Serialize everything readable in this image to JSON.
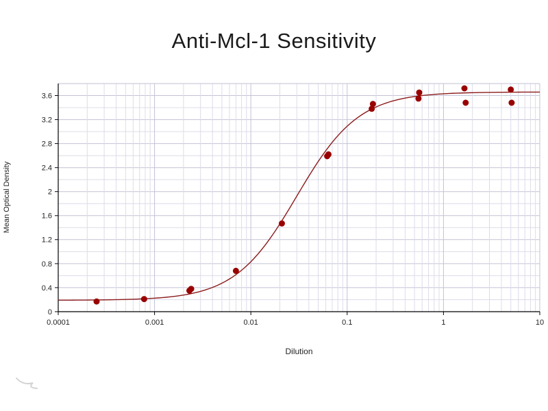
{
  "chart_data": {
    "type": "scatter",
    "title": "Anti-Mcl-1 Sensitivity",
    "xlabel": "Dilution",
    "ylabel": "Mean Optical Density",
    "x_scale": "log",
    "y_scale": "linear",
    "xlim": [
      0.0001,
      10
    ],
    "ylim": [
      0,
      3.8
    ],
    "x_ticks": [
      0.0001,
      0.001,
      0.01,
      0.1,
      1,
      10
    ],
    "x_tick_labels": [
      "0.0001",
      "0.001",
      "0.01",
      "0.1",
      "1",
      "10"
    ],
    "y_ticks": [
      0,
      0.4,
      0.8,
      1.2,
      1.6,
      2,
      2.4,
      2.8,
      3.2,
      3.6
    ],
    "y_tick_labels": [
      "0",
      "0.4",
      "0.8",
      "1.2",
      "1.6",
      "2",
      "2.4",
      "2.8",
      "3.2",
      "3.6"
    ],
    "grid": "on",
    "legend": "none",
    "points": [
      [
        0.00025,
        0.17
      ],
      [
        0.00078,
        0.21
      ],
      [
        0.0023,
        0.35
      ],
      [
        0.0024,
        0.38
      ],
      [
        0.007,
        0.68
      ],
      [
        0.021,
        1.47
      ],
      [
        0.062,
        2.59
      ],
      [
        0.064,
        2.62
      ],
      [
        0.18,
        3.38
      ],
      [
        0.185,
        3.46
      ],
      [
        0.55,
        3.55
      ],
      [
        0.56,
        3.65
      ],
      [
        1.65,
        3.72
      ],
      [
        1.7,
        3.48
      ],
      [
        5.0,
        3.7
      ],
      [
        5.1,
        3.48
      ]
    ],
    "fit_curve": {
      "model": "4PL",
      "bottom": 0.19,
      "top": 3.66,
      "ec50": 0.03,
      "hill": 1.35
    },
    "colors": {
      "point": "#990000",
      "curve": "#8b1a1a",
      "grid_minor": "#dcdce9",
      "grid_major": "#c2c2d6",
      "axis": "#000000",
      "tick_text": "#222222"
    }
  }
}
